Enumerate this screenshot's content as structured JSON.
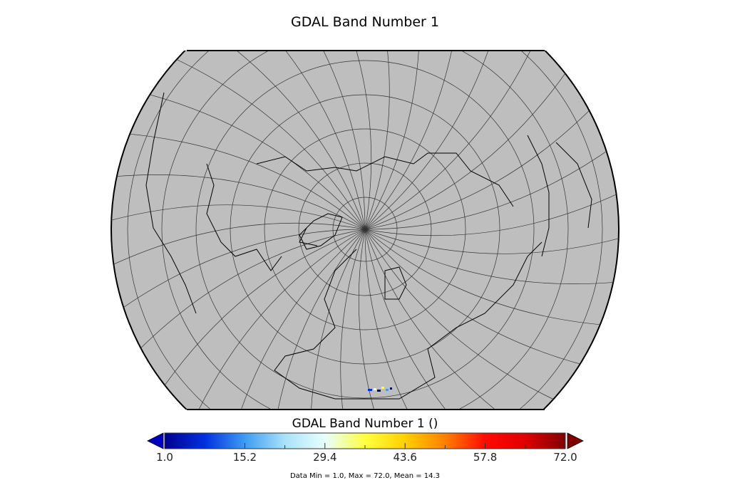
{
  "title": "GDAL Band Number 1",
  "colorbar": {
    "label": "GDAL Band Number 1 ()",
    "min": 1.0,
    "max": 72.0,
    "ticks": [
      "1.0",
      "15.2",
      "29.4",
      "43.6",
      "57.8",
      "72.0"
    ],
    "extend": "both",
    "colormap": [
      "#00008f",
      "#0030e0",
      "#3e9cf2",
      "#a8e2f8",
      "#e8ffff",
      "#ffff40",
      "#ffd000",
      "#ff8000",
      "#ff0a00",
      "#e00000",
      "#800000"
    ],
    "stats": "Data Min = 1.0, Max = 72.0, Mean = 14.3"
  },
  "map": {
    "projection": "north-polar orthographic",
    "background_color": "#bebebe",
    "coastline_color": "#000000",
    "graticule": true
  }
}
